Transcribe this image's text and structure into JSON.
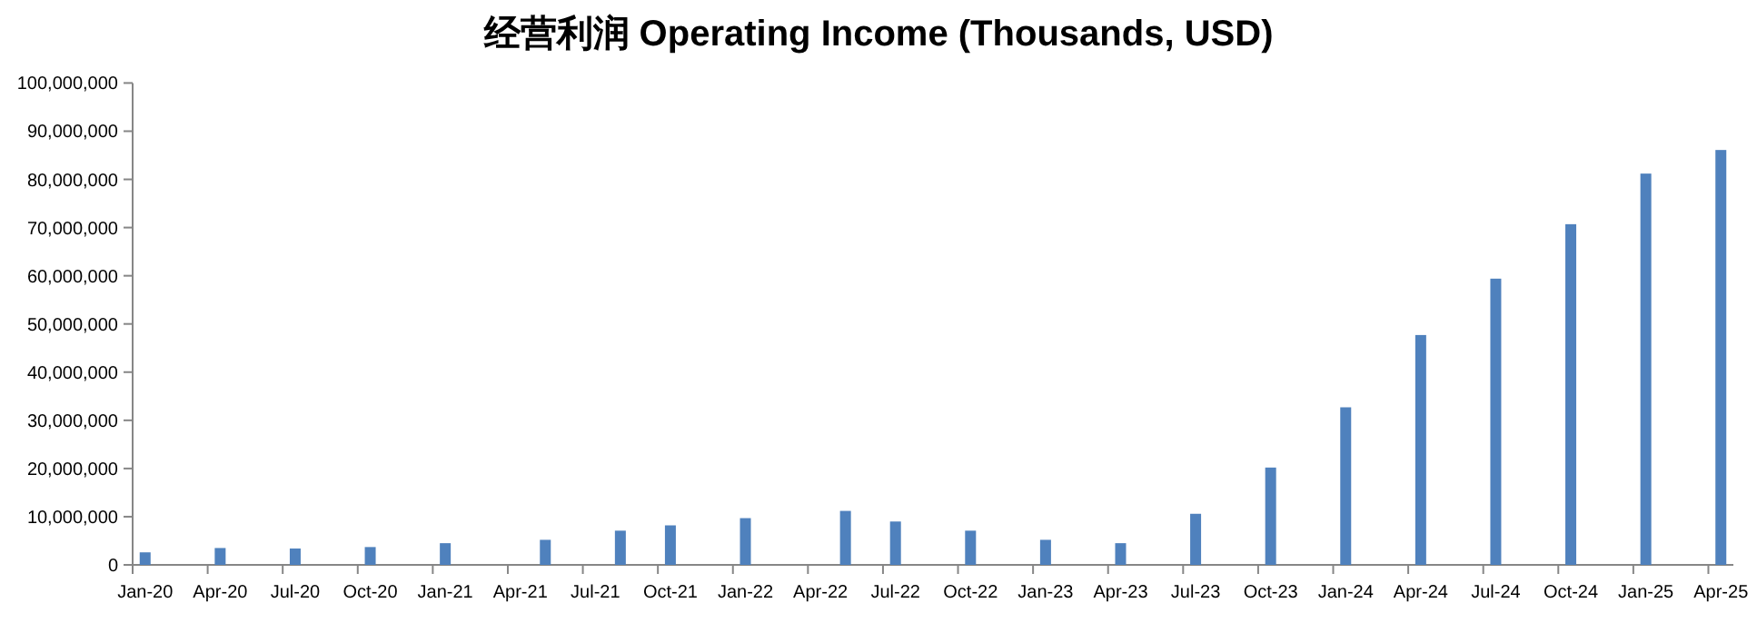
{
  "chart_data": {
    "type": "bar",
    "title": "经营利润 Operating Income (Thousands, USD)",
    "x": [
      "2020-01",
      "2020-04",
      "2020-07",
      "2020-10",
      "2021-01",
      "2021-05",
      "2021-08",
      "2021-10",
      "2022-01",
      "2022-05",
      "2022-07",
      "2022-10",
      "2023-01",
      "2023-04",
      "2023-07",
      "2023-10",
      "2024-01",
      "2024-04",
      "2024-07",
      "2024-10",
      "2025-01",
      "2025-04"
    ],
    "series": [
      {
        "color": "#4f81bd",
        "values": [
          2600000,
          3500000,
          3400000,
          3700000,
          4500000,
          5200000,
          7100000,
          8200000,
          9700000,
          11200000,
          9000000,
          7100000,
          5200000,
          4500000,
          10600000,
          20200000,
          32700000,
          47700000,
          59400000,
          70700000,
          81200000,
          86100000
        ]
      }
    ],
    "xlim": [
      "2020-01",
      "2025-04"
    ],
    "xticks": [
      {
        "value": "2020-01",
        "label": "Jan-20"
      },
      {
        "value": "2020-04",
        "label": "Apr-20"
      },
      {
        "value": "2020-07",
        "label": "Jul-20"
      },
      {
        "value": "2020-10",
        "label": "Oct-20"
      },
      {
        "value": "2021-01",
        "label": "Jan-21"
      },
      {
        "value": "2021-04",
        "label": "Apr-21"
      },
      {
        "value": "2021-07",
        "label": "Jul-21"
      },
      {
        "value": "2021-10",
        "label": "Oct-21"
      },
      {
        "value": "2022-01",
        "label": "Jan-22"
      },
      {
        "value": "2022-04",
        "label": "Apr-22"
      },
      {
        "value": "2022-07",
        "label": "Jul-22"
      },
      {
        "value": "2022-10",
        "label": "Oct-22"
      },
      {
        "value": "2023-01",
        "label": "Jan-23"
      },
      {
        "value": "2023-04",
        "label": "Apr-23"
      },
      {
        "value": "2023-07",
        "label": "Jul-23"
      },
      {
        "value": "2023-10",
        "label": "Oct-23"
      },
      {
        "value": "2024-01",
        "label": "Jan-24"
      },
      {
        "value": "2024-04",
        "label": "Apr-24"
      },
      {
        "value": "2024-07",
        "label": "Jul-24"
      },
      {
        "value": "2024-10",
        "label": "Oct-24"
      },
      {
        "value": "2025-01",
        "label": "Jan-25"
      },
      {
        "value": "2025-04",
        "label": "Apr-25"
      }
    ],
    "ylim": [
      0,
      100000000
    ],
    "yticks": [
      {
        "value": 0,
        "label": "0"
      },
      {
        "value": 10000000,
        "label": "10,000,000"
      },
      {
        "value": 20000000,
        "label": "20,000,000"
      },
      {
        "value": 30000000,
        "label": "30,000,000"
      },
      {
        "value": 40000000,
        "label": "40,000,000"
      },
      {
        "value": 50000000,
        "label": "50,000,000"
      },
      {
        "value": 60000000,
        "label": "60,000,000"
      },
      {
        "value": 70000000,
        "label": "70,000,000"
      },
      {
        "value": 80000000,
        "label": "80,000,000"
      },
      {
        "value": 90000000,
        "label": "90,000,000"
      },
      {
        "value": 100000000,
        "label": "100,000,000"
      }
    ],
    "grid": false
  }
}
